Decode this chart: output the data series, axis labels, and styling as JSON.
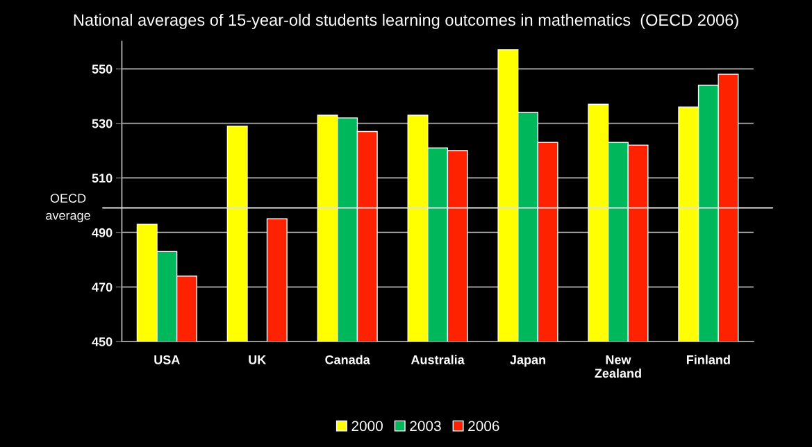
{
  "chart_data": {
    "type": "bar",
    "title": "National averages of 15-year-old students learning outcomes in mathematics  (OECD 2006)",
    "categories": [
      "USA",
      "UK",
      "Canada",
      "Australia",
      "Japan",
      "New\nZealand",
      "Finland"
    ],
    "series": [
      {
        "name": "2000",
        "color": "#ffff00",
        "values": [
          493,
          529,
          533,
          533,
          557,
          537,
          536
        ]
      },
      {
        "name": "2003",
        "color": "#00b85c",
        "values": [
          483,
          null,
          532,
          521,
          534,
          523,
          544
        ]
      },
      {
        "name": "2006",
        "color": "#ff2200",
        "values": [
          474,
          495,
          527,
          520,
          523,
          522,
          548
        ]
      }
    ],
    "ylim": [
      450,
      560
    ],
    "yticks": [
      450,
      470,
      490,
      510,
      530,
      550
    ],
    "grid": "y",
    "legend": "bottom",
    "ref_lines": [
      {
        "axis": "y",
        "value": 499,
        "label": "OECD\naverage",
        "color": "#e0e0e0"
      }
    ]
  }
}
